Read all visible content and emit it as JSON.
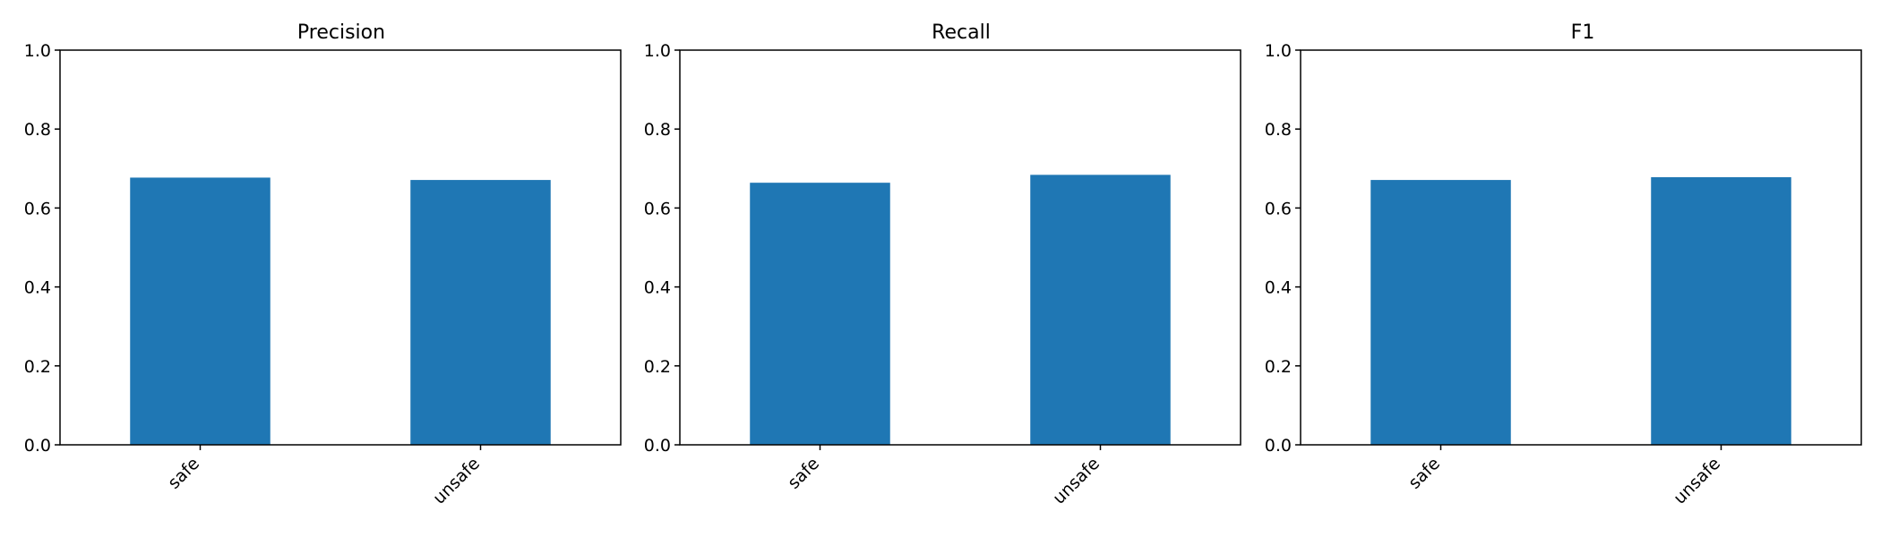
{
  "chart_data": [
    {
      "type": "bar",
      "title": "Precision",
      "categories": [
        "safe",
        "unsafe"
      ],
      "values": [
        0.677,
        0.671
      ],
      "ylim": [
        0,
        1.0
      ],
      "yticks": [
        "0.0",
        "0.2",
        "0.4",
        "0.6",
        "0.8",
        "1.0"
      ],
      "color": "#1f77b4",
      "xlabel": "",
      "ylabel": "",
      "grid": false
    },
    {
      "type": "bar",
      "title": "Recall",
      "categories": [
        "safe",
        "unsafe"
      ],
      "values": [
        0.664,
        0.684
      ],
      "ylim": [
        0,
        1.0
      ],
      "yticks": [
        "0.0",
        "0.2",
        "0.4",
        "0.6",
        "0.8",
        "1.0"
      ],
      "color": "#1f77b4",
      "xlabel": "",
      "ylabel": "",
      "grid": false
    },
    {
      "type": "bar",
      "title": "F1",
      "categories": [
        "safe",
        "unsafe"
      ],
      "values": [
        0.671,
        0.678
      ],
      "ylim": [
        0,
        1.0
      ],
      "yticks": [
        "0.0",
        "0.2",
        "0.4",
        "0.6",
        "0.8",
        "1.0"
      ],
      "color": "#1f77b4",
      "xlabel": "",
      "ylabel": "",
      "grid": false
    }
  ]
}
